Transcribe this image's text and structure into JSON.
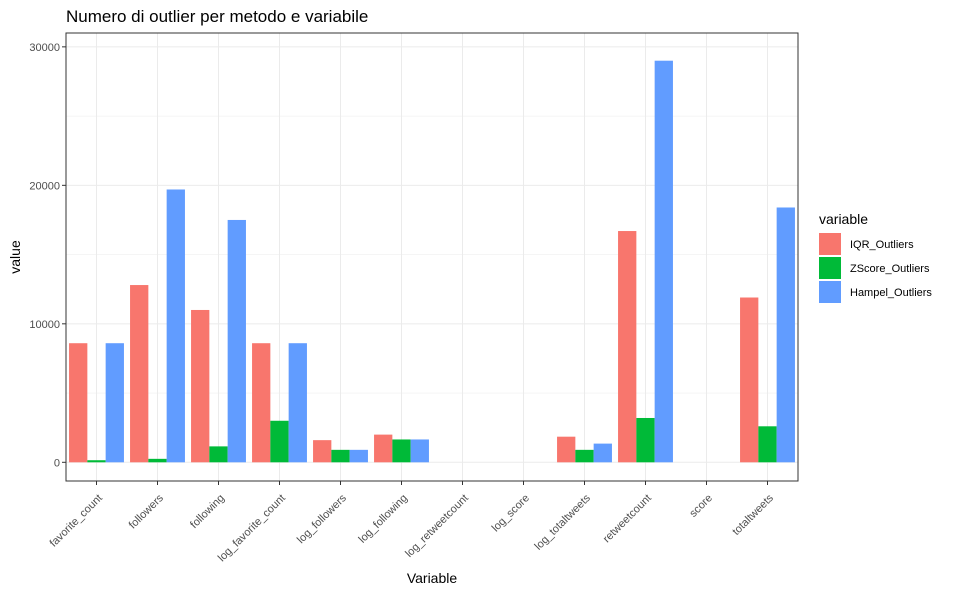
{
  "chart_data": {
    "type": "bar",
    "title": "Numero di outlier per metodo e variabile",
    "xlabel": "Variable",
    "ylabel": "value",
    "ylim": [
      -1350,
      31000
    ],
    "yticks": [
      0,
      10000,
      20000,
      30000
    ],
    "grid": true,
    "legend": {
      "title": "variable",
      "position": "right"
    },
    "categories": [
      "favorite_count",
      "followers",
      "following",
      "log_favorite_count",
      "log_followers",
      "log_following",
      "log_retweetcount",
      "log_score",
      "log_totaltweets",
      "retweetcount",
      "score",
      "totaltweets"
    ],
    "series": [
      {
        "name": "IQR_Outliers",
        "color": "#F8766D",
        "values": [
          8600,
          12800,
          11000,
          8600,
          1600,
          2000,
          0,
          0,
          1850,
          16700,
          0,
          11900
        ]
      },
      {
        "name": "ZScore_Outliers",
        "color": "#00BA38",
        "values": [
          150,
          250,
          1150,
          3000,
          900,
          1650,
          0,
          0,
          900,
          3200,
          0,
          2600
        ]
      },
      {
        "name": "Hampel_Outliers",
        "color": "#619CFF",
        "values": [
          8600,
          19700,
          17500,
          8600,
          900,
          1650,
          0,
          0,
          1350,
          29000,
          0,
          18400
        ]
      }
    ]
  }
}
